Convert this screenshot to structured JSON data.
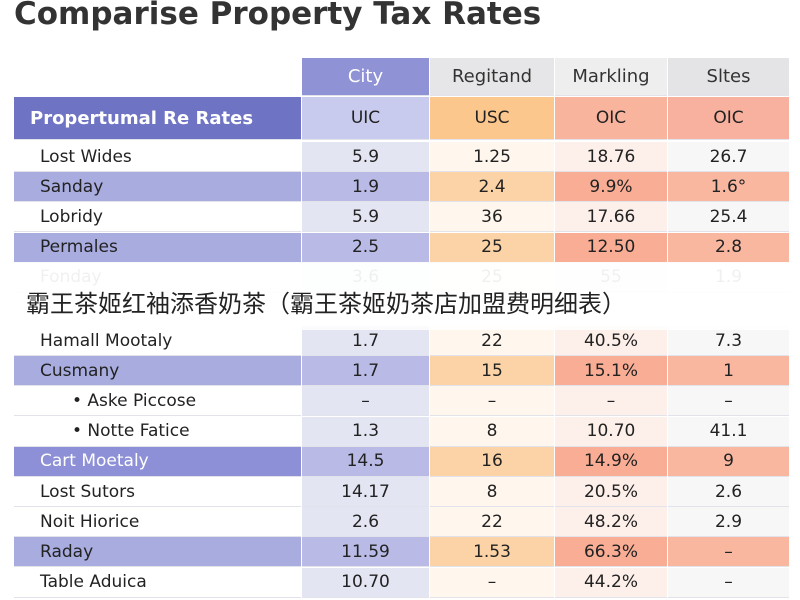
{
  "title": "Comparise Property Tax Rates",
  "columns": [
    "City",
    "Regitand",
    "Markling",
    "Sltes"
  ],
  "subheader": {
    "label": "Propertumal Re Rates",
    "cells": [
      "UIC",
      "USC",
      "OIC",
      "OIC"
    ]
  },
  "rows": [
    {
      "label": "Lost Wides",
      "cells": [
        "5.9",
        "1.25",
        "18.76",
        "26.7"
      ]
    },
    {
      "label": "Sanday",
      "cells": [
        "1.9",
        "2.4",
        "9.9%",
        "1.6°"
      ]
    },
    {
      "label": "Lobridy",
      "cells": [
        "5.9",
        "36",
        "17.66",
        "25.4"
      ]
    },
    {
      "label": "Permales",
      "cells": [
        "2.5",
        "25",
        "12.50",
        "2.8"
      ]
    },
    {
      "label": "Fonday",
      "cells": [
        "3.6",
        "25",
        "55",
        "1.9"
      ]
    },
    {
      "label": "Hamall Mootaly",
      "cells": [
        "1.7",
        "22",
        "40.5%",
        "7.3"
      ]
    },
    {
      "label": "Cusmany",
      "cells": [
        "1.7",
        "15",
        "15.1%",
        "1"
      ]
    },
    {
      "label": "• Aske Piccose",
      "cells": [
        "–",
        "–",
        "–",
        "–"
      ]
    },
    {
      "label": "• Notte Fatice",
      "cells": [
        "1.3",
        "8",
        "10.70",
        "41.1"
      ]
    },
    {
      "label": "Cart Moetaly",
      "cells": [
        "14.5",
        "16",
        "14.9%",
        "9"
      ]
    },
    {
      "label": "Lost Sutors",
      "cells": [
        "14.17",
        "8",
        "20.5%",
        "2.6"
      ]
    },
    {
      "label": "Noit Hiorice",
      "cells": [
        "2.6",
        "22",
        "48.2%",
        "2.9"
      ]
    },
    {
      "label": "Raday",
      "cells": [
        "11.59",
        "1.53",
        "66.3%",
        "–"
      ]
    },
    {
      "label": "Table Aduica",
      "cells": [
        "10.70",
        "–",
        "44.2%",
        "–"
      ]
    }
  ],
  "banner": "霸王茶姬红袖添香奶茶（霸王茶姬奶茶店加盟费明细表）"
}
